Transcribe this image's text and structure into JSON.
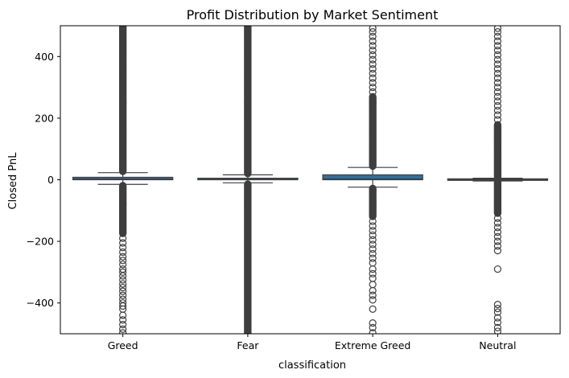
{
  "chart_data": {
    "type": "box",
    "title": "Profit Distribution by Market Sentiment",
    "xlabel": "classification",
    "ylabel": "Closed PnL",
    "ylim": [
      -500,
      500
    ],
    "yticks": [
      400,
      200,
      0,
      -200,
      -400
    ],
    "ytick_labels": [
      "400",
      "200",
      "0",
      "−200",
      "−400"
    ],
    "grid": false,
    "box_color": "#2f6f9f",
    "line_color": "#3f3f3f",
    "series": [
      {
        "category": "Greed",
        "q1": 0,
        "median": 2,
        "q3": 8,
        "whisker_low": -15,
        "whisker_high": 23,
        "outliers_high_dense_to": 500,
        "outliers_low_dense_to": -175,
        "outliers_low_sparse": [
          -190,
          -205,
          -220,
          -235,
          -250,
          -262,
          -275,
          -290,
          -300,
          -312,
          -325,
          -338,
          -350,
          -362,
          -375,
          -388,
          -400,
          -410,
          -420,
          -440,
          -455,
          -470,
          -485,
          -497
        ]
      },
      {
        "category": "Fear",
        "q1": 0,
        "median": 1,
        "q3": 5,
        "whisker_low": -10,
        "whisker_high": 16,
        "outliers_high_dense_to": 500,
        "outliers_low_dense_to": -500,
        "outliers_low_sparse": []
      },
      {
        "category": "Extreme Greed",
        "q1": 0,
        "median": 2,
        "q3": 16,
        "whisker_low": -24,
        "whisker_high": 40,
        "outliers_high_dense_to": 270,
        "outliers_high_sparse": [
          285,
          300,
          315,
          330,
          345,
          360,
          375,
          390,
          405,
          420,
          435,
          450,
          465,
          480,
          492
        ],
        "outliers_low_dense_to": -120,
        "outliers_low_sparse": [
          -135,
          -150,
          -165,
          -180,
          -195,
          -210,
          -225,
          -240,
          -255,
          -270,
          -290,
          -305,
          -320,
          -340,
          -360,
          -375,
          -390,
          -420,
          -465,
          -480,
          -497
        ]
      },
      {
        "category": "Neutral",
        "q1": -2,
        "median": 0,
        "q3": 3,
        "whisker_low": -4,
        "whisker_high": 5,
        "outliers_high_dense_to": 180,
        "outliers_high_sparse": [
          195,
          210,
          225,
          240,
          255,
          270,
          285,
          300,
          315,
          330,
          345,
          360,
          375,
          390,
          405,
          420,
          435,
          450,
          465,
          480,
          492
        ],
        "outliers_low_dense_to": -110,
        "outliers_low_sparse": [
          -125,
          -140,
          -155,
          -170,
          -185,
          -200,
          -215,
          -230,
          -290,
          -405,
          -418,
          -430,
          -448,
          -463,
          -480,
          -492
        ]
      }
    ]
  }
}
